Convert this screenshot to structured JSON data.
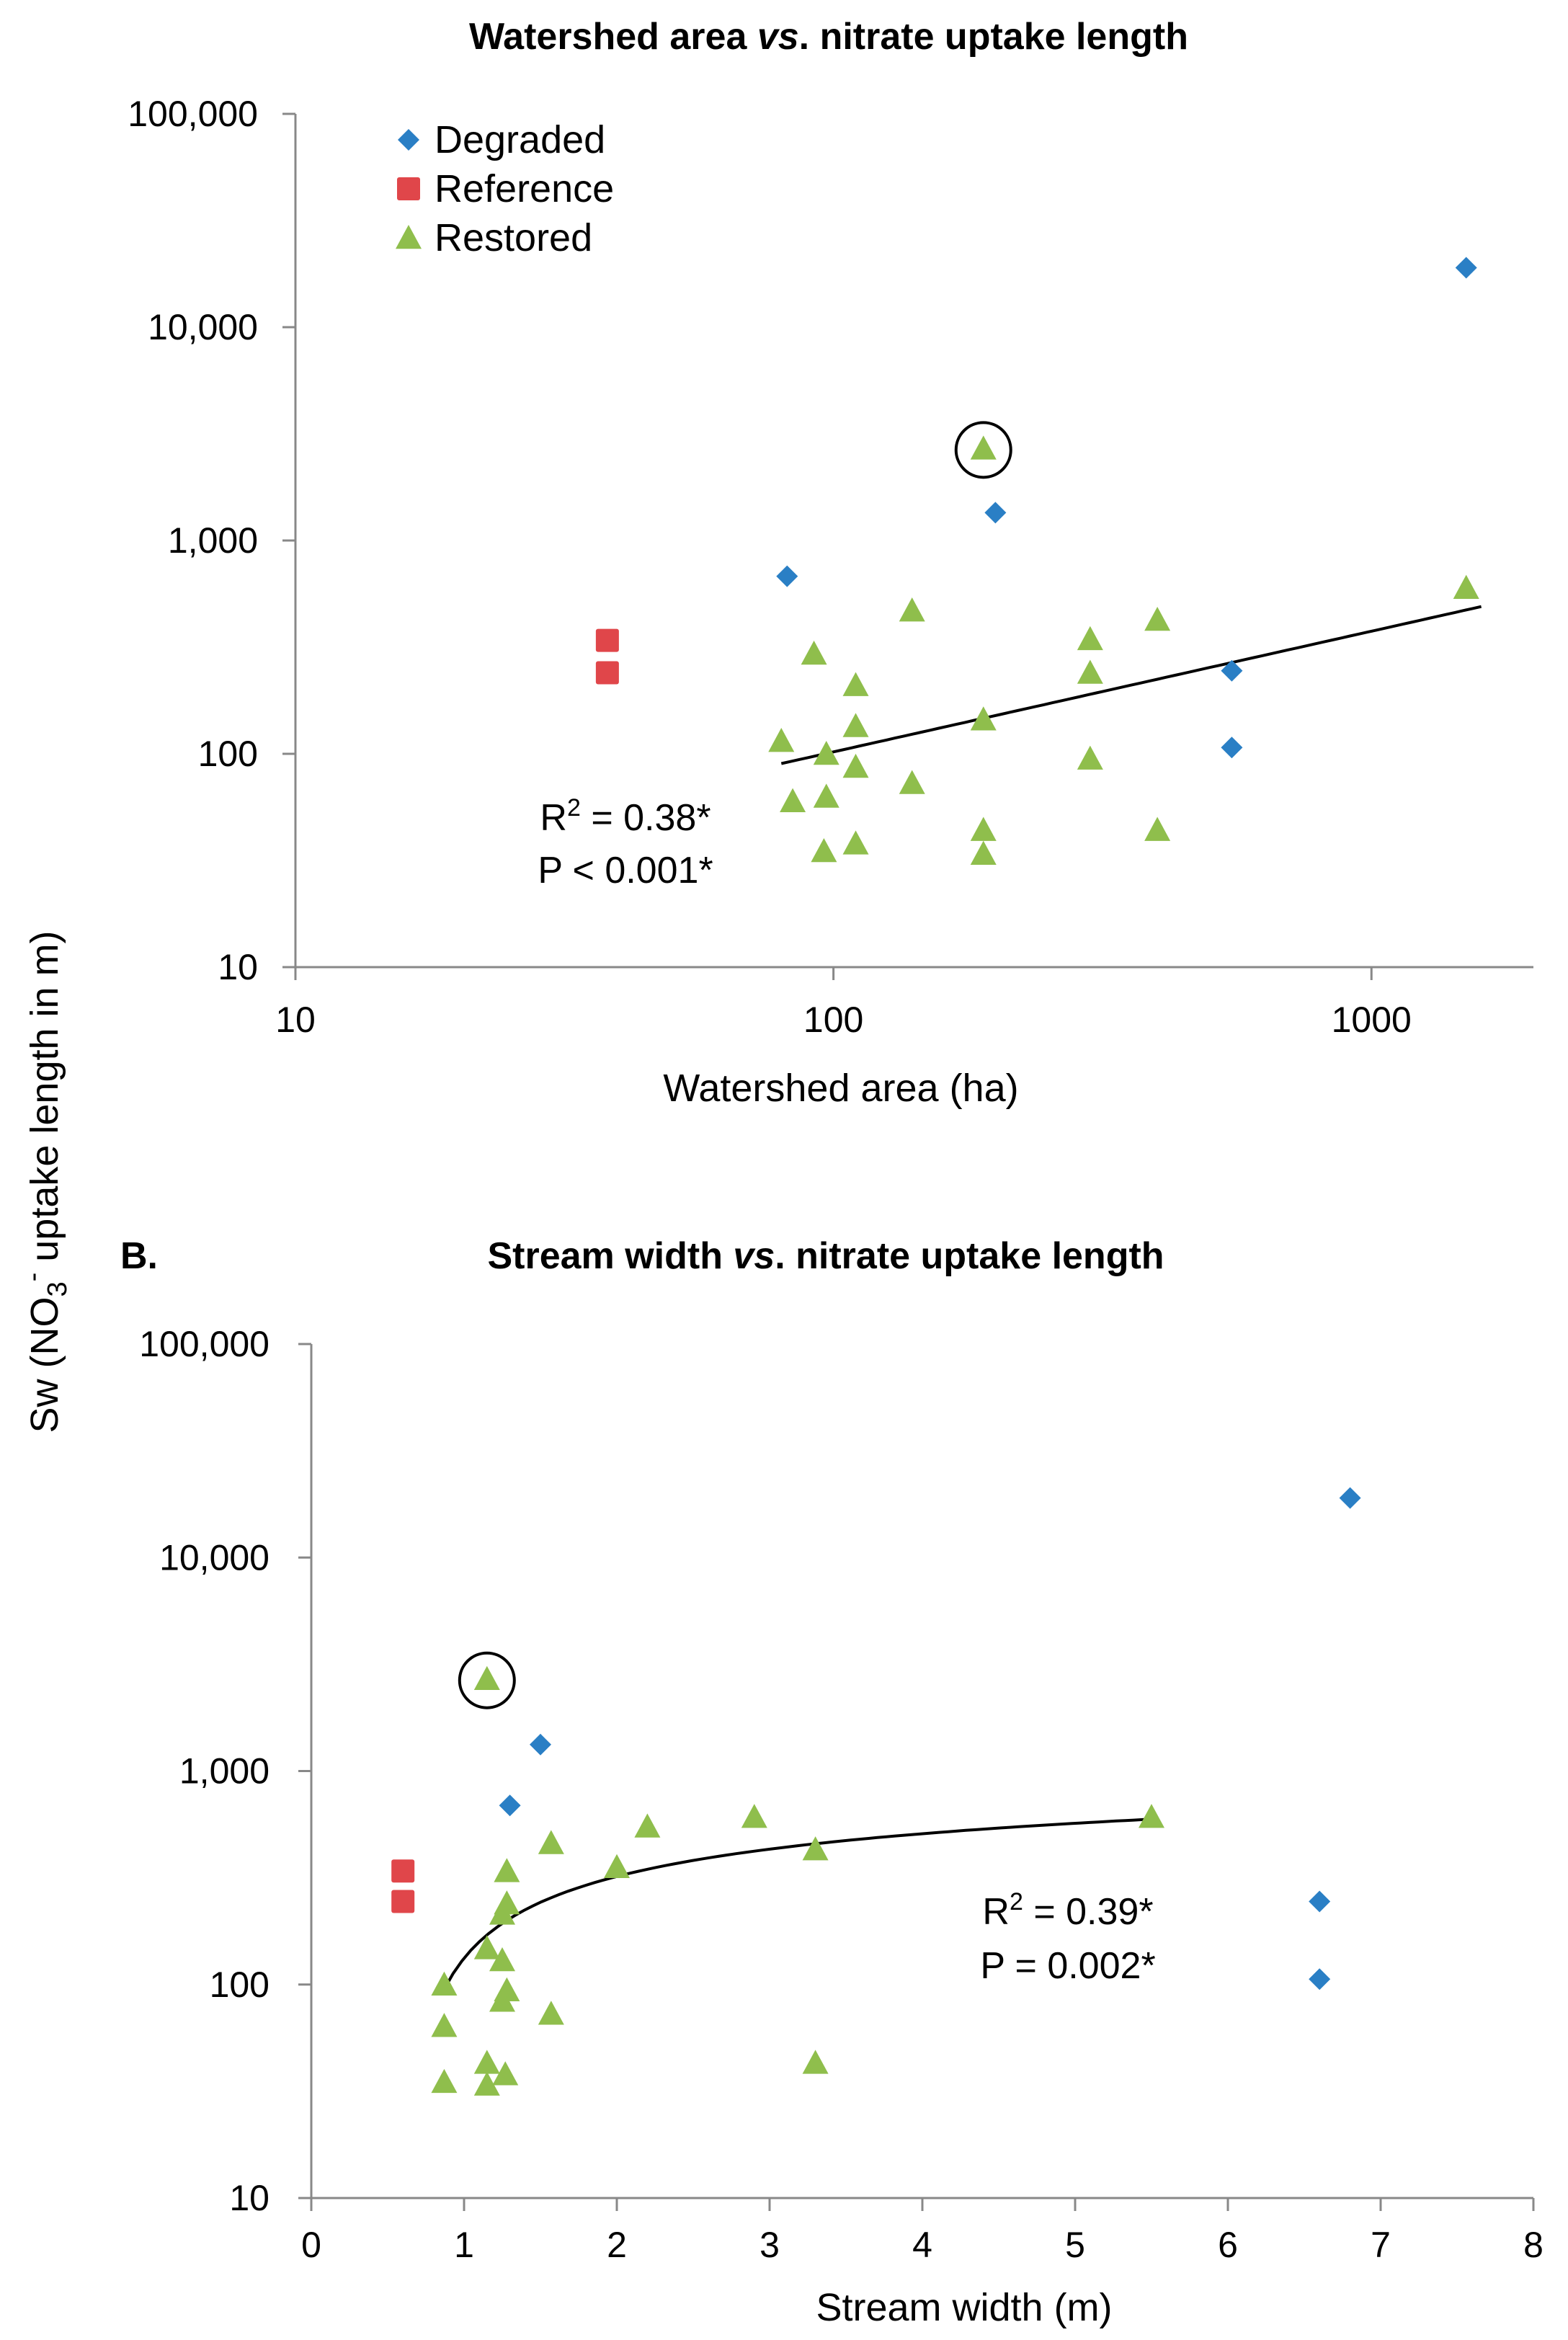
{
  "figure": {
    "shared_ylabel": {
      "main": "Sw (NO",
      "sub": "3",
      "sup": "-",
      "rest": " uptake length in m)"
    },
    "legend": [
      {
        "name": "Degraded",
        "color": "#2a7fc5",
        "marker": "diamond"
      },
      {
        "name": "Reference",
        "color": "#e0464a",
        "marker": "square"
      },
      {
        "name": "Restored",
        "color": "#8fbe4c",
        "marker": "triangle"
      }
    ]
  },
  "chart_data": [
    {
      "type": "scatter",
      "panel_label": "",
      "title": "Watershed area vs. nitrate uptake length",
      "title_parts": [
        "Watershed area ",
        "vs",
        ". nitrate uptake length"
      ],
      "xlabel": "Watershed area (ha)",
      "xscale": "log",
      "yscale": "log",
      "xlim": [
        10,
        2000
      ],
      "ylim": [
        10,
        100000
      ],
      "xticks": [
        10,
        100,
        1000
      ],
      "xtick_labels": [
        "10",
        "100",
        "1000"
      ],
      "yticks": [
        10,
        100,
        1000,
        10000,
        100000
      ],
      "ytick_labels": [
        "10",
        "100",
        "1,000",
        "10,000",
        "100,000"
      ],
      "series": [
        {
          "name": "Degraded",
          "points": [
            [
              82,
              680
            ],
            [
              200,
              1350
            ],
            [
              550,
              245
            ],
            [
              550,
              107
            ],
            [
              1500,
              19000
            ]
          ]
        },
        {
          "name": "Reference",
          "points": [
            [
              38,
              340
            ],
            [
              38,
              240
            ]
          ]
        },
        {
          "name": "Restored",
          "points": [
            [
              80,
              115
            ],
            [
              84,
              60
            ],
            [
              92,
              295
            ],
            [
              96,
              35
            ],
            [
              97,
              100
            ],
            [
              97,
              63
            ],
            [
              110,
              210
            ],
            [
              110,
              135
            ],
            [
              110,
              87
            ],
            [
              110,
              38
            ],
            [
              140,
              470
            ],
            [
              140,
              73
            ],
            [
              190,
              2700
            ],
            [
              190,
              145
            ],
            [
              190,
              44
            ],
            [
              190,
              34
            ],
            [
              300,
              345
            ],
            [
              300,
              240
            ],
            [
              300,
              95
            ],
            [
              400,
              425
            ],
            [
              400,
              44
            ],
            [
              1500,
              600
            ]
          ]
        }
      ],
      "highlighted_point": [
        190,
        2700
      ],
      "trendline": {
        "type": "power",
        "x_range": [
          80,
          1600
        ],
        "y_start": 90,
        "y_end": 490
      },
      "stats": {
        "r2_prefix": "R",
        "r2_sup": "2",
        "r2_value": " = 0.38*",
        "p_text": "P < 0.001*"
      }
    },
    {
      "type": "scatter",
      "panel_label": "B.",
      "title": "Stream width vs. nitrate uptake length",
      "title_parts": [
        "Stream width ",
        "vs",
        ". nitrate uptake length"
      ],
      "xlabel": "Stream width (m)",
      "xscale": "linear",
      "yscale": "log",
      "xlim": [
        0,
        8
      ],
      "ylim": [
        10,
        100000
      ],
      "xticks": [
        0,
        1,
        2,
        3,
        4,
        5,
        6,
        7,
        8
      ],
      "xtick_labels": [
        "0",
        "1",
        "2",
        "3",
        "4",
        "5",
        "6",
        "7",
        "8"
      ],
      "yticks": [
        10,
        100,
        1000,
        10000,
        100000
      ],
      "ytick_labels": [
        "10",
        "100",
        "1,000",
        "10,000",
        "100,000"
      ],
      "series": [
        {
          "name": "Degraded",
          "points": [
            [
              1.3,
              690
            ],
            [
              1.5,
              1330
            ],
            [
              6.6,
              245
            ],
            [
              6.6,
              106
            ],
            [
              6.8,
              19000
            ]
          ]
        },
        {
          "name": "Reference",
          "points": [
            [
              0.6,
              340
            ],
            [
              0.6,
              245
            ]
          ]
        },
        {
          "name": "Restored",
          "points": [
            [
              0.87,
              100
            ],
            [
              0.87,
              64
            ],
            [
              0.87,
              35
            ],
            [
              1.15,
              2700
            ],
            [
              1.15,
              148
            ],
            [
              1.15,
              43
            ],
            [
              1.15,
              34
            ],
            [
              1.25,
              215
            ],
            [
              1.25,
              130
            ],
            [
              1.25,
              84
            ],
            [
              1.27,
              38
            ],
            [
              1.28,
              340
            ],
            [
              1.28,
              240
            ],
            [
              1.28,
              94
            ],
            [
              1.57,
              460
            ],
            [
              1.57,
              73
            ],
            [
              2.0,
              355
            ],
            [
              2.2,
              550
            ],
            [
              2.9,
              610
            ],
            [
              3.3,
              430
            ],
            [
              3.3,
              43
            ],
            [
              5.5,
              610
            ]
          ]
        }
      ],
      "highlighted_point": [
        1.15,
        2700
      ],
      "trendline": {
        "type": "log",
        "x_range": [
          0.87,
          5.5
        ],
        "y_start": 95,
        "y_end": 595
      },
      "stats": {
        "r2_prefix": "R",
        "r2_sup": "2",
        "r2_value": " = 0.39*",
        "p_text": "P = 0.002*"
      }
    }
  ]
}
